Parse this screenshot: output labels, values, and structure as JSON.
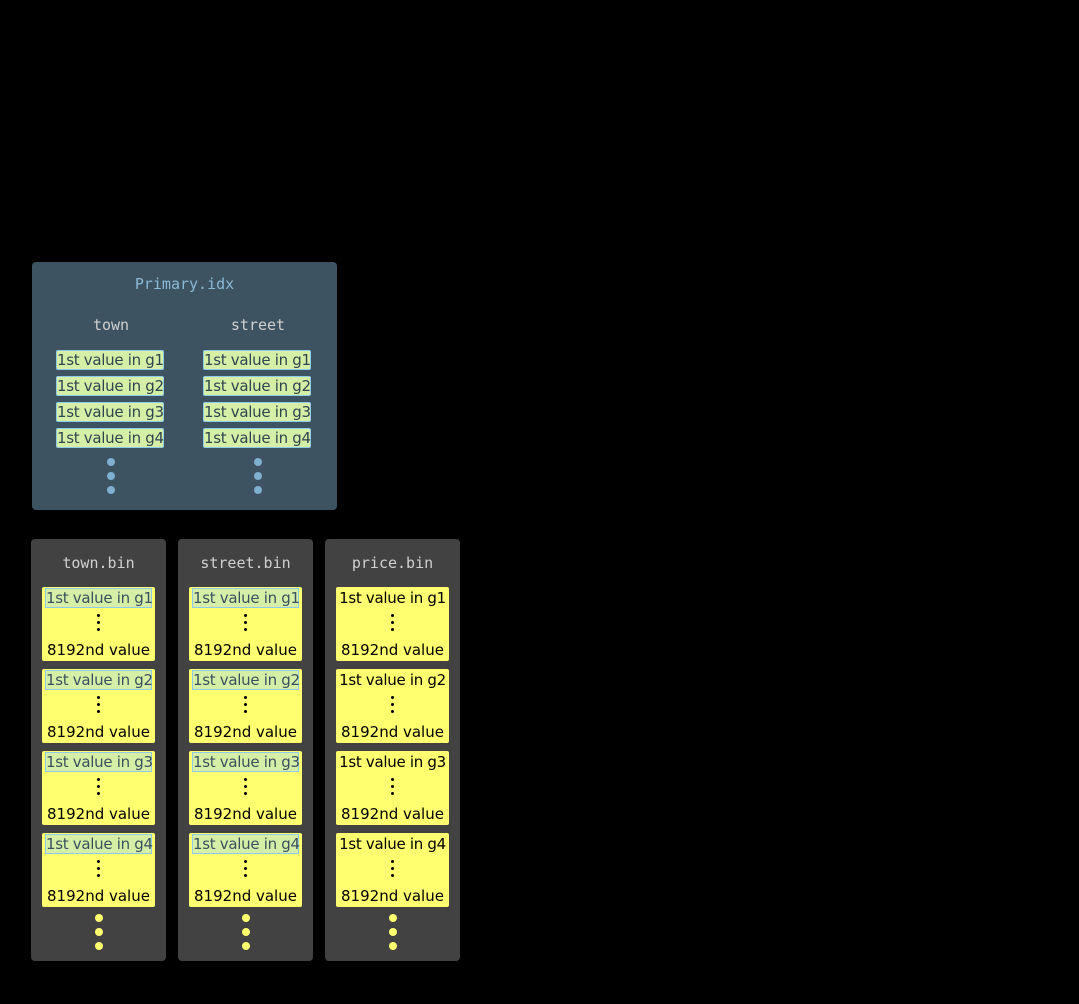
{
  "primary_index": {
    "title": "Primary.idx",
    "columns": [
      {
        "name": "town",
        "values": [
          "1st value in g1",
          "1st value in g2",
          "1st value in g3",
          "1st value in g4"
        ]
      },
      {
        "name": "street",
        "values": [
          "1st value in g1",
          "1st value in g2",
          "1st value in g3",
          "1st value in g4"
        ]
      }
    ]
  },
  "bin_files": [
    {
      "title": "town.bin",
      "highlight_first": true,
      "groups": [
        {
          "first": "1st value in g1",
          "last": "8192nd value"
        },
        {
          "first": "1st value in g2",
          "last": "8192nd value"
        },
        {
          "first": "1st value in g3",
          "last": "8192nd value"
        },
        {
          "first": "1st value in g4",
          "last": "8192nd value"
        }
      ]
    },
    {
      "title": "street.bin",
      "highlight_first": true,
      "groups": [
        {
          "first": "1st value in g1",
          "last": "8192nd value"
        },
        {
          "first": "1st value in g2",
          "last": "8192nd value"
        },
        {
          "first": "1st value in g3",
          "last": "8192nd value"
        },
        {
          "first": "1st value in g4",
          "last": "8192nd value"
        }
      ]
    },
    {
      "title": "price.bin",
      "highlight_first": false,
      "groups": [
        {
          "first": "1st value in g1",
          "last": "8192nd value"
        },
        {
          "first": "1st value in g2",
          "last": "8192nd value"
        },
        {
          "first": "1st value in g3",
          "last": "8192nd value"
        },
        {
          "first": "1st value in g4",
          "last": "8192nd value"
        }
      ]
    }
  ],
  "colors": {
    "index_panel": "#3d5361",
    "bin_panel": "#424242",
    "granule": "#ffff70",
    "index_mark": "#d6efa6",
    "index_dots": "#7fb0d0"
  }
}
